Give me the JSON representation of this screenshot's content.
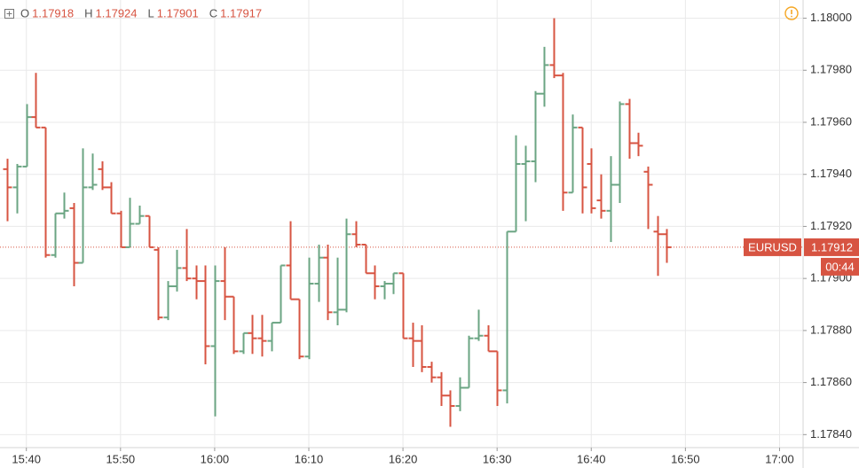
{
  "chart_data": {
    "type": "ohlc",
    "header": [
      {
        "label": "O",
        "value": "1.17918"
      },
      {
        "label": "H",
        "value": "1.17924"
      },
      {
        "label": "L",
        "value": "1.17901"
      },
      {
        "label": "C",
        "value": "1.17917"
      }
    ],
    "symbol": "EURUSD",
    "last_price": {
      "value": 1.17912,
      "label": "1.17912"
    },
    "countdown": "00:44",
    "up_color": "#6ba583",
    "down_color": "#d75442",
    "grid": true,
    "xlim": [
      937.2,
      1022.5
    ],
    "xticks": [
      {
        "value": 940,
        "label": "15:40"
      },
      {
        "value": 950,
        "label": "15:50"
      },
      {
        "value": 960,
        "label": "16:00"
      },
      {
        "value": 970,
        "label": "16:10"
      },
      {
        "value": 980,
        "label": "16:20"
      },
      {
        "value": 990,
        "label": "16:30"
      },
      {
        "value": 1000,
        "label": "16:40"
      },
      {
        "value": 1010,
        "label": "16:50"
      },
      {
        "value": 1020,
        "label": "17:00"
      }
    ],
    "ylim": [
      1.17835,
      1.18007
    ],
    "yticks": [
      {
        "value": 1.1784,
        "label": "1.17840"
      },
      {
        "value": 1.1786,
        "label": "1.17860"
      },
      {
        "value": 1.1788,
        "label": "1.17880"
      },
      {
        "value": 1.179,
        "label": "1.17900"
      },
      {
        "value": 1.1792,
        "label": "1.17920"
      },
      {
        "value": 1.1794,
        "label": "1.17940"
      },
      {
        "value": 1.1796,
        "label": "1.17960"
      },
      {
        "value": 1.1798,
        "label": "1.17980"
      },
      {
        "value": 1.18,
        "label": "1.18000"
      }
    ],
    "x": [
      938,
      939,
      940,
      941,
      942,
      943,
      944,
      945,
      946,
      947,
      948,
      949,
      950,
      951,
      952,
      953,
      954,
      955,
      956,
      957,
      958,
      959,
      960,
      961,
      962,
      963,
      964,
      965,
      966,
      967,
      968,
      969,
      970,
      971,
      972,
      973,
      974,
      975,
      976,
      977,
      978,
      979,
      980,
      981,
      982,
      983,
      984,
      985,
      986,
      987,
      988,
      989,
      990,
      991,
      992,
      993,
      994,
      995,
      996,
      997,
      998,
      999,
      1000,
      1001,
      1002,
      1003,
      1004,
      1005,
      1006,
      1007,
      1008
    ],
    "open": [
      1.17942,
      1.17935,
      1.17943,
      1.17962,
      1.17958,
      1.17909,
      1.17925,
      1.17927,
      1.17906,
      1.17935,
      1.17942,
      1.17935,
      1.17925,
      1.17912,
      1.17921,
      1.17924,
      1.17911,
      1.17885,
      1.17897,
      1.17904,
      1.179,
      1.17899,
      1.17874,
      1.17899,
      1.17893,
      1.17872,
      1.17879,
      1.17877,
      1.17876,
      1.17883,
      1.17905,
      1.17892,
      1.1787,
      1.17898,
      1.17908,
      1.17887,
      1.17888,
      1.17917,
      1.17913,
      1.17902,
      1.17897,
      1.17898,
      1.17902,
      1.17877,
      1.17876,
      1.17866,
      1.17862,
      1.17855,
      1.17851,
      1.17858,
      1.17877,
      1.17878,
      1.17872,
      1.17857,
      1.17918,
      1.17944,
      1.17945,
      1.17971,
      1.17982,
      1.17978,
      1.17933,
      1.17958,
      1.17944,
      1.1793,
      1.17926,
      1.17936,
      1.17967,
      1.17952,
      1.17941,
      1.17918,
      1.17917
    ],
    "high": [
      1.17946,
      1.17944,
      1.17967,
      1.17979,
      1.17958,
      1.17925,
      1.17933,
      1.17929,
      1.1795,
      1.17948,
      1.17945,
      1.17937,
      1.17926,
      1.17931,
      1.17928,
      1.17924,
      1.17912,
      1.17899,
      1.17911,
      1.17919,
      1.17905,
      1.17905,
      1.17905,
      1.17912,
      1.17893,
      1.17879,
      1.17886,
      1.17886,
      1.17883,
      1.17905,
      1.17922,
      1.17892,
      1.17908,
      1.17913,
      1.17913,
      1.17908,
      1.17923,
      1.17922,
      1.17913,
      1.17905,
      1.17899,
      1.17902,
      1.17902,
      1.17883,
      1.17882,
      1.17868,
      1.17864,
      1.17857,
      1.17862,
      1.17878,
      1.17888,
      1.17882,
      1.17872,
      1.17918,
      1.17955,
      1.17951,
      1.17972,
      1.17989,
      1.18,
      1.17979,
      1.17963,
      1.17958,
      1.1795,
      1.1794,
      1.17947,
      1.17968,
      1.17969,
      1.17956,
      1.17943,
      1.17924,
      1.17919
    ],
    "low": [
      1.17922,
      1.17925,
      1.17943,
      1.17958,
      1.17908,
      1.17908,
      1.17923,
      1.17897,
      1.17906,
      1.17934,
      1.17934,
      1.17925,
      1.17912,
      1.17912,
      1.17921,
      1.17912,
      1.17884,
      1.17884,
      1.17895,
      1.17899,
      1.17892,
      1.17867,
      1.17847,
      1.17884,
      1.17871,
      1.17871,
      1.17871,
      1.1787,
      1.17872,
      1.17883,
      1.17892,
      1.17869,
      1.17869,
      1.17891,
      1.17884,
      1.17882,
      1.17887,
      1.17912,
      1.17902,
      1.17892,
      1.17892,
      1.17894,
      1.17877,
      1.17866,
      1.17864,
      1.1786,
      1.17851,
      1.17843,
      1.17849,
      1.17858,
      1.17876,
      1.17872,
      1.17851,
      1.17852,
      1.17918,
      1.17922,
      1.17937,
      1.17966,
      1.17977,
      1.17926,
      1.17933,
      1.17925,
      1.17925,
      1.17923,
      1.17914,
      1.17929,
      1.17946,
      1.17947,
      1.17919,
      1.17901,
      1.17906
    ],
    "close": [
      1.17935,
      1.17943,
      1.17962,
      1.17958,
      1.17909,
      1.17925,
      1.17926,
      1.17906,
      1.17935,
      1.17936,
      1.17935,
      1.17925,
      1.17912,
      1.17921,
      1.17924,
      1.17912,
      1.17885,
      1.17897,
      1.17904,
      1.179,
      1.17899,
      1.17874,
      1.17899,
      1.17893,
      1.17872,
      1.17879,
      1.17877,
      1.17876,
      1.17883,
      1.17905,
      1.17892,
      1.1787,
      1.17898,
      1.17908,
      1.17887,
      1.17888,
      1.17917,
      1.17913,
      1.17902,
      1.17897,
      1.17898,
      1.17902,
      1.17877,
      1.17876,
      1.17866,
      1.17862,
      1.17855,
      1.17851,
      1.17858,
      1.17877,
      1.17878,
      1.17872,
      1.17857,
      1.17918,
      1.17944,
      1.17945,
      1.17971,
      1.17982,
      1.17978,
      1.17933,
      1.17958,
      1.17935,
      1.17927,
      1.17926,
      1.17936,
      1.17967,
      1.17952,
      1.17951,
      1.17936,
      1.17917,
      1.17912
    ]
  }
}
